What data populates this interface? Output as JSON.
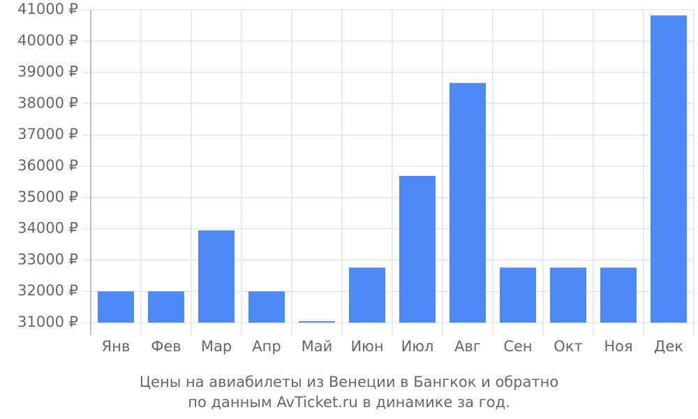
{
  "chart_data": {
    "type": "bar",
    "caption": [
      "Цены на авиабилеты из Венеции в Бангкок и обратно",
      "по данным AvTicket.ru в динамике за год."
    ],
    "categories": [
      "Янв",
      "Фев",
      "Мар",
      "Апр",
      "Май",
      "Июн",
      "Июл",
      "Авг",
      "Сен",
      "Окт",
      "Ноя",
      "Дек"
    ],
    "values": [
      32000,
      32000,
      33950,
      32000,
      31045,
      32760,
      35690,
      38660,
      32760,
      32760,
      32760,
      40820
    ],
    "color": "#4d8af8",
    "ylim": [
      31000,
      41000
    ],
    "yticks": [
      {
        "value": 31000,
        "label": "31000 ₽"
      },
      {
        "value": 32000,
        "label": "32000 ₽"
      },
      {
        "value": 33000,
        "label": "33000 ₽"
      },
      {
        "value": 34000,
        "label": "34000 ₽"
      },
      {
        "value": 35000,
        "label": "35000 ₽"
      },
      {
        "value": 36000,
        "label": "36000 ₽"
      },
      {
        "value": 37000,
        "label": "37000 ₽"
      },
      {
        "value": 38000,
        "label": "38000 ₽"
      },
      {
        "value": 39000,
        "label": "39000 ₽"
      },
      {
        "value": 40000,
        "label": "40000 ₽"
      },
      {
        "value": 41000,
        "label": "41000 ₽"
      }
    ],
    "grid": true
  }
}
